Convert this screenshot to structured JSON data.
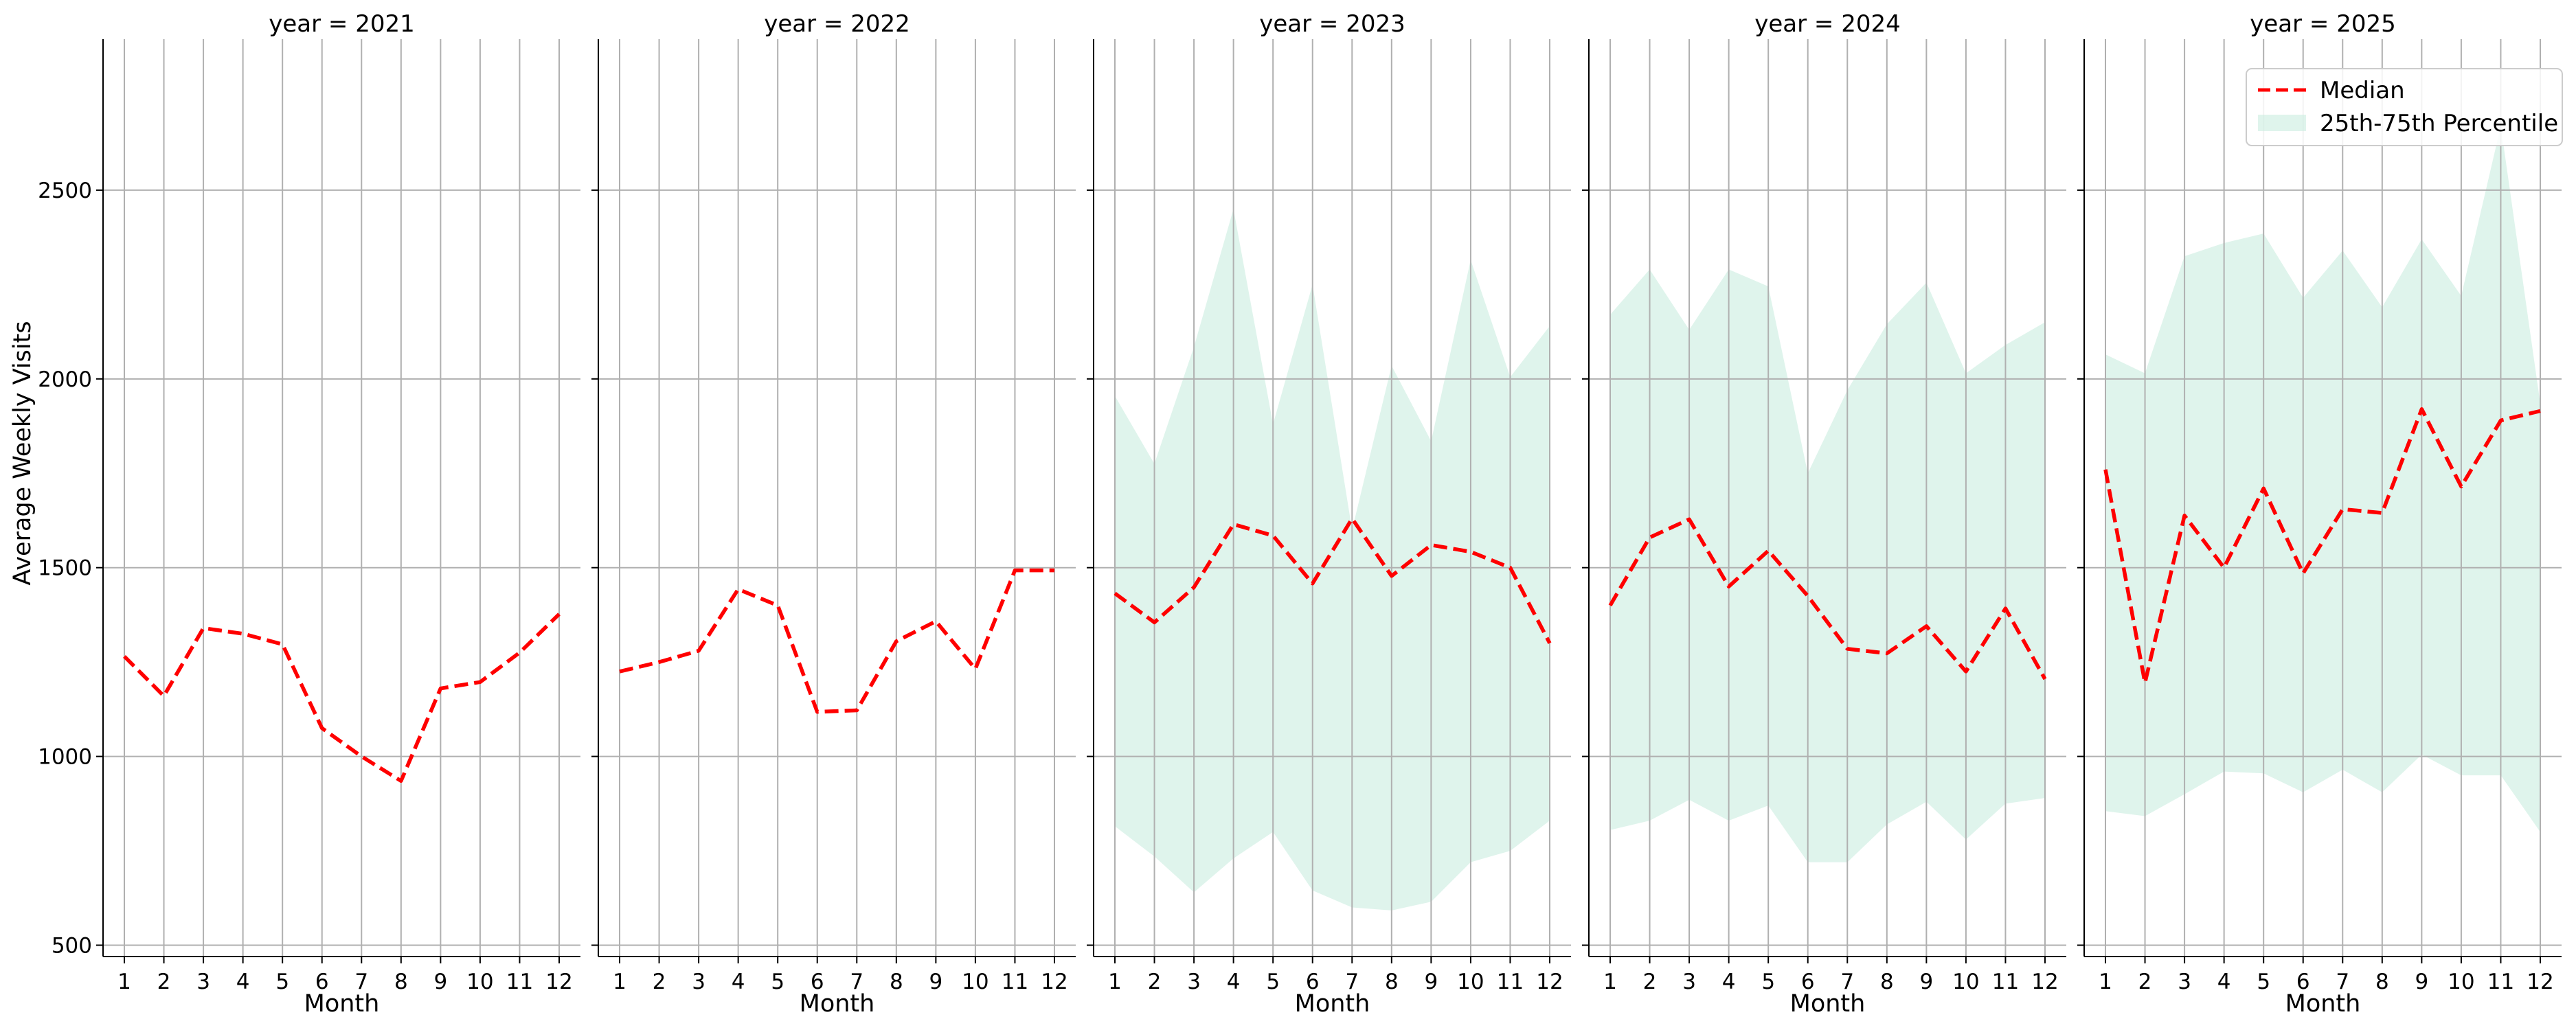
{
  "chart_data": {
    "type": "line",
    "ylabel": "Average Weekly Visits",
    "xlabel": "Month",
    "yticks": [
      500,
      1000,
      1500,
      2000,
      2500
    ],
    "ylim": [
      470,
      2900
    ],
    "xticks": [
      "1",
      "2",
      "3",
      "4",
      "5",
      "6",
      "7",
      "8",
      "9",
      "10",
      "11",
      "12"
    ],
    "grid": true,
    "legend": {
      "placement": "top-right",
      "median_label": "Median",
      "band_label": "25th-75th Percentile"
    },
    "colors": {
      "median": "#ff0000",
      "band": "#c9ece0",
      "grid": "#b0b0b0",
      "axis": "#000000"
    },
    "panels": [
      {
        "title": "year = 2021",
        "median": [
          1265,
          1160,
          1340,
          1325,
          1297,
          1075,
          1000,
          935,
          1180,
          1197,
          1275,
          1377
        ],
        "p25": null,
        "p75": null
      },
      {
        "title": "year = 2022",
        "median": [
          1225,
          1250,
          1280,
          1443,
          1400,
          1118,
          1122,
          1305,
          1358,
          1232,
          1493,
          1493
        ],
        "p25": null,
        "p75": null
      },
      {
        "title": "year = 2023",
        "median": [
          1432,
          1355,
          1448,
          1615,
          1585,
          1458,
          1630,
          1478,
          1560,
          1542,
          1500,
          1300
        ],
        "p25": [
          815,
          735,
          640,
          730,
          800,
          645,
          600,
          592,
          615,
          720,
          750,
          830
        ],
        "p75": [
          1955,
          1775,
          2085,
          2450,
          1880,
          2250,
          1600,
          2035,
          1835,
          2315,
          2005,
          2140
        ]
      },
      {
        "title": "year = 2024",
        "median": [
          1400,
          1580,
          1628,
          1450,
          1545,
          1425,
          1285,
          1273,
          1345,
          1225,
          1392,
          1205
        ],
        "p25": [
          805,
          830,
          885,
          830,
          870,
          720,
          720,
          820,
          880,
          780,
          875,
          890
        ],
        "p75": [
          2170,
          2290,
          2130,
          2290,
          2245,
          1750,
          1970,
          2145,
          2255,
          2015,
          2090,
          2150
        ]
      },
      {
        "title": "year = 2025",
        "median": [
          1760,
          1195,
          1638,
          1500,
          1710,
          1485,
          1655,
          1645,
          1920,
          1715,
          1890,
          1915
        ],
        "p25": [
          855,
          842,
          900,
          960,
          955,
          905,
          965,
          905,
          1005,
          950,
          950,
          800
        ],
        "p75": [
          2065,
          2015,
          2325,
          2360,
          2385,
          2215,
          2340,
          2190,
          2370,
          2220,
          2670,
          1935
        ]
      }
    ]
  }
}
